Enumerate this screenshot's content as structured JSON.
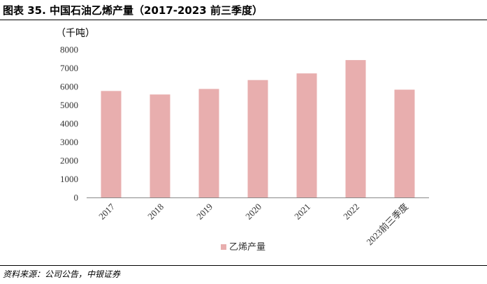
{
  "figure": {
    "title": "图表 35. 中国石油乙烯产量（2017-2023 前三季度）",
    "source": "资料来源：公司公告，中银证券"
  },
  "chart_data": {
    "type": "bar",
    "unit": "（千吨）",
    "categories": [
      "2017",
      "2018",
      "2019",
      "2020",
      "2021",
      "2022",
      "2023前三季度"
    ],
    "series": [
      {
        "name": "乙烯产量",
        "values": [
          5760,
          5570,
          5870,
          6350,
          6710,
          7430,
          5830
        ],
        "color": "#e8aeae"
      }
    ],
    "yticks": [
      "0",
      "1000",
      "2000",
      "3000",
      "4000",
      "5000",
      "6000",
      "7000",
      "8000"
    ],
    "ylim": [
      0,
      8000
    ],
    "grid": false,
    "legend": "bottom-center"
  }
}
